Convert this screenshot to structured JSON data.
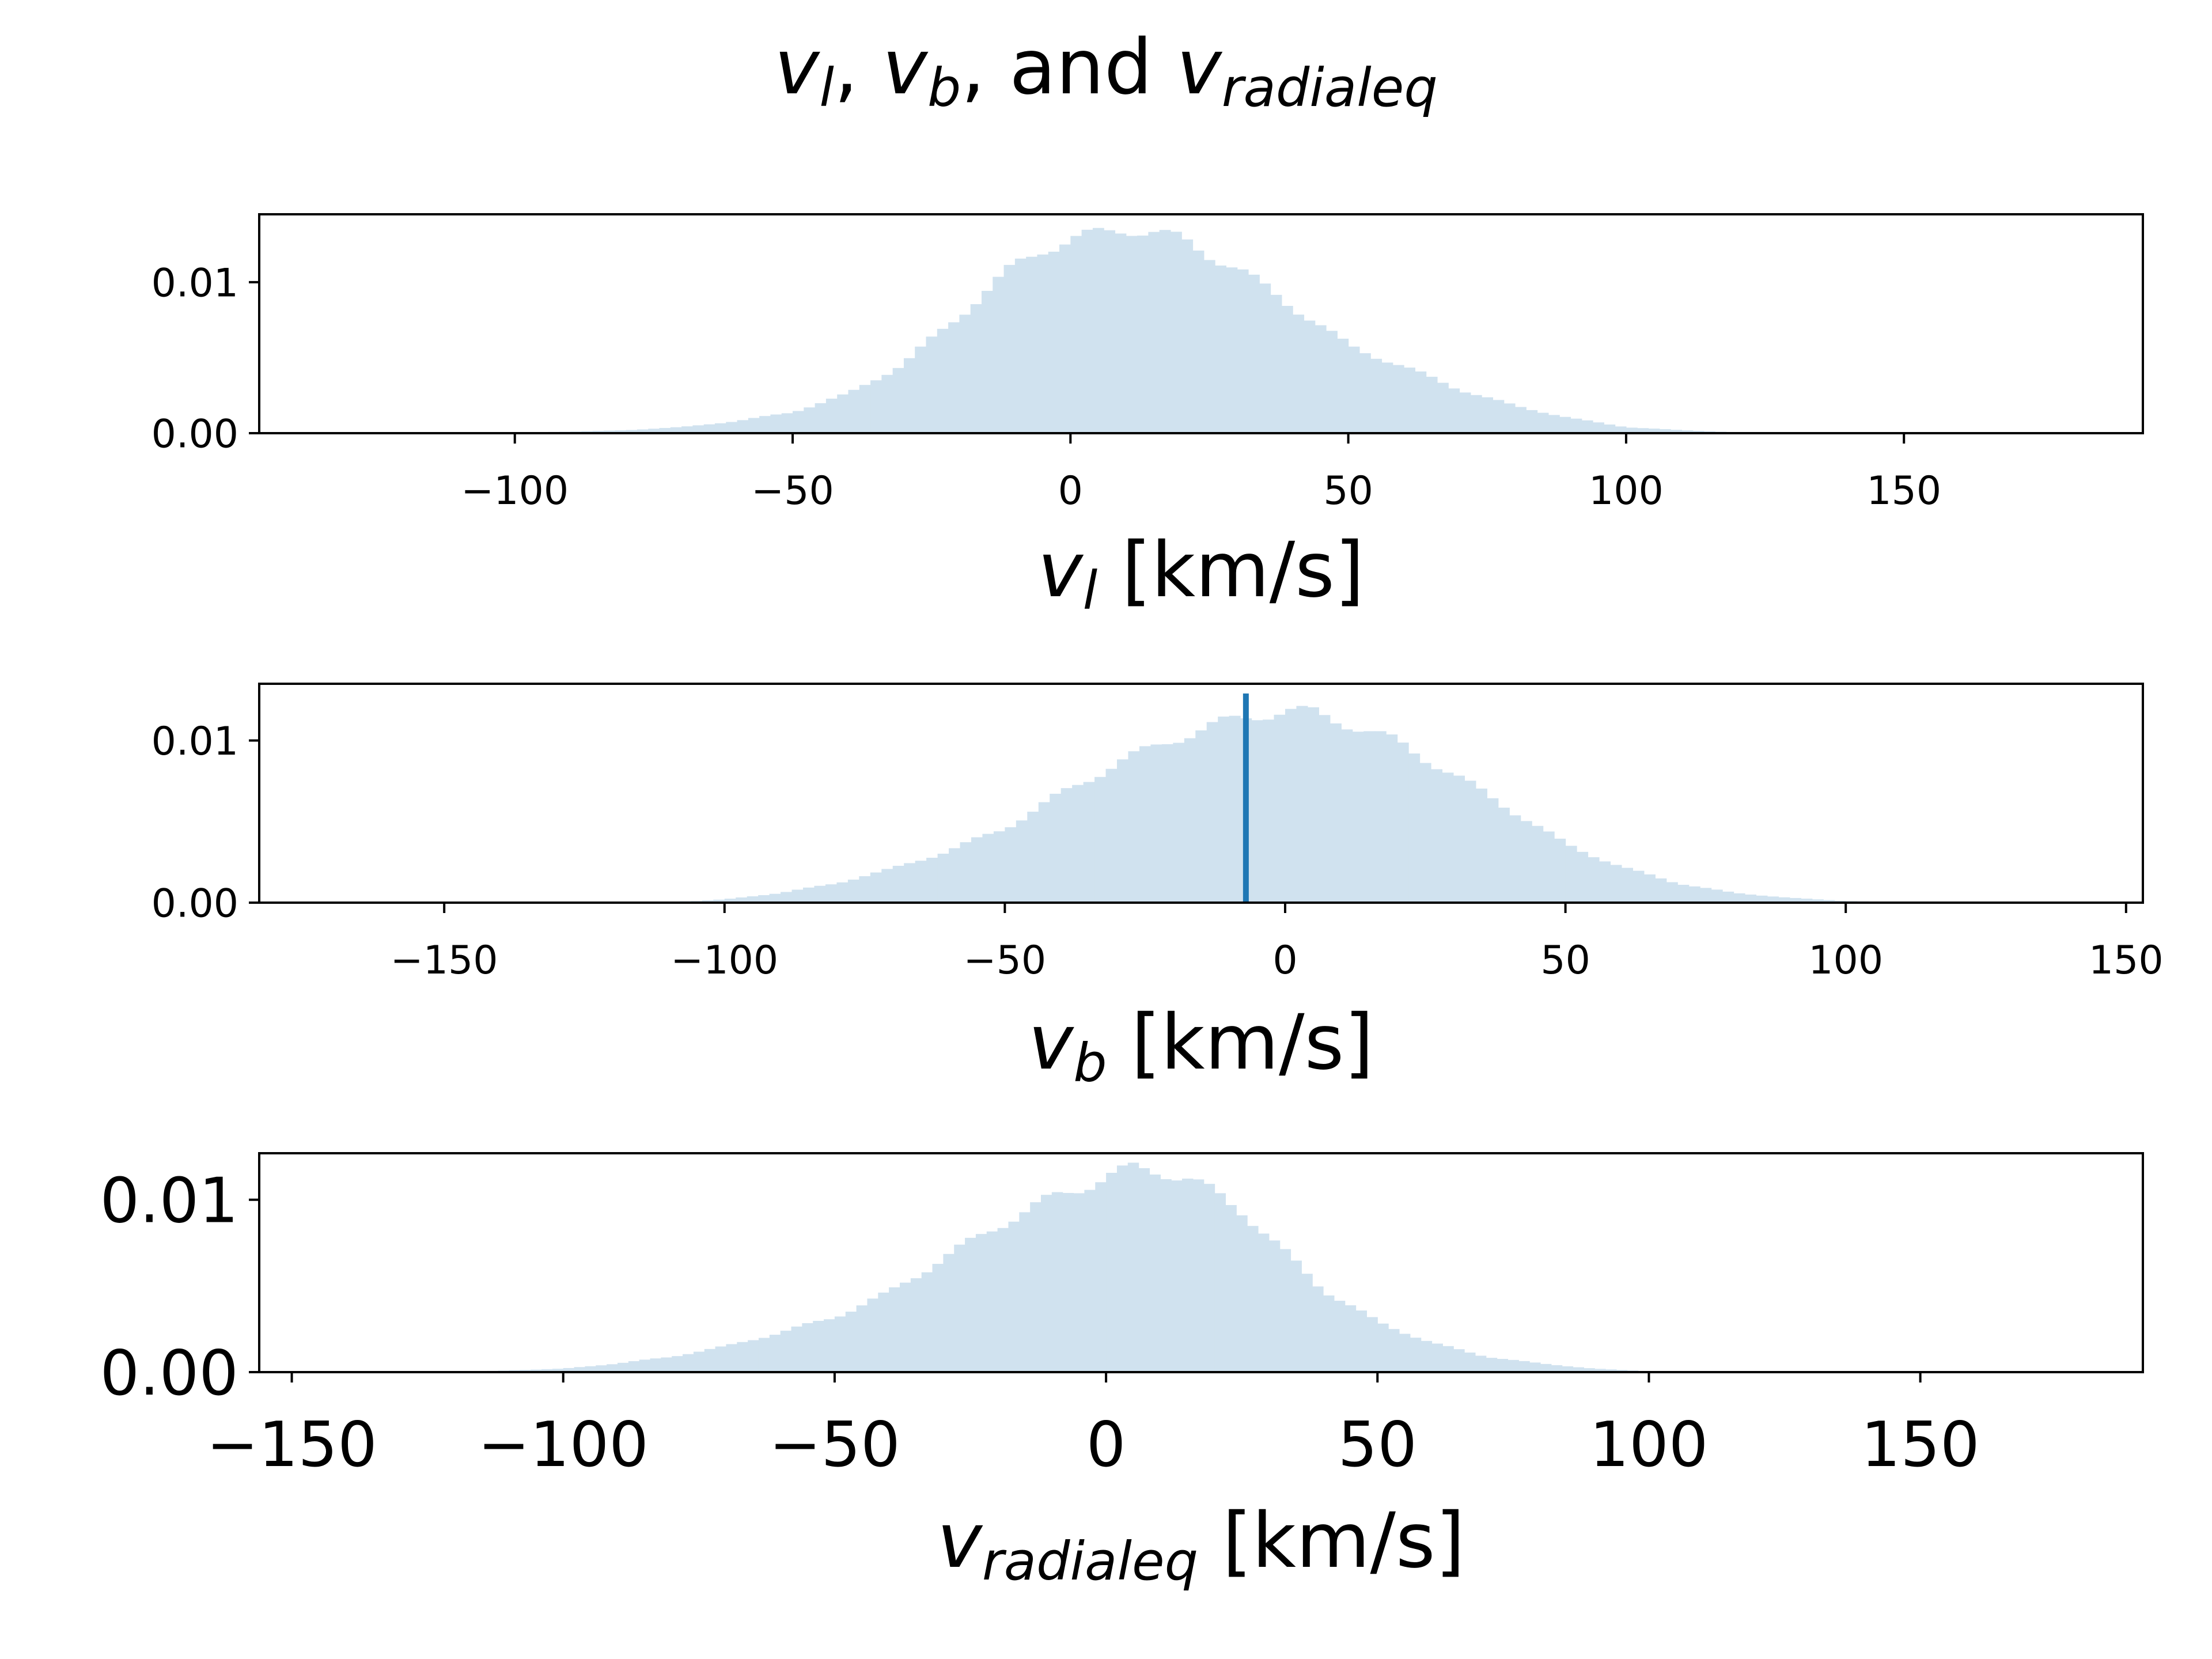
{
  "figure": {
    "title": {
      "main": "v",
      "sub_1": "l",
      "sep_1": ", ",
      "main_2": "v",
      "sub_2": "b",
      "sep_2": ", and ",
      "main_3": "v",
      "sub_3": "radialeq"
    }
  },
  "colors": {
    "bar_fill": "#d0e2ef",
    "marker_line": "#1f77b4",
    "axes": "#000000"
  },
  "chart_data": [
    {
      "type": "bar",
      "xlabel": {
        "var": "v",
        "sub": "l",
        "unit": " [km/s]"
      },
      "ylabel": "",
      "xlim": [
        -146,
        193
      ],
      "ylim": [
        0,
        0.0145
      ],
      "xticks": [
        -100,
        -50,
        0,
        50,
        100,
        150
      ],
      "xtick_labels": [
        "−100",
        "−50",
        "0",
        "50",
        "100",
        "150"
      ],
      "yticks": [
        0,
        0.01
      ],
      "ytick_labels": [
        "0.00",
        "0.01"
      ],
      "bin_width": 2,
      "bins_x": [
        -120,
        -110,
        -100,
        -90,
        -80,
        -70,
        -60,
        -50,
        -40,
        -30,
        -20,
        -10,
        -5,
        0,
        5,
        10,
        15,
        20,
        30,
        40,
        50,
        60,
        70,
        80,
        90,
        100,
        110,
        120,
        130
      ],
      "bins_y": [
        0,
        2e-05,
        5e-05,
        0.0001,
        0.0002,
        0.0004,
        0.0008,
        0.0014,
        0.0026,
        0.0046,
        0.0078,
        0.0111,
        0.0122,
        0.0128,
        0.0132,
        0.0136,
        0.0133,
        0.0128,
        0.0109,
        0.0084,
        0.0058,
        0.0044,
        0.0029,
        0.0018,
        0.001,
        0.0004,
        0.0002,
        5e-05,
        0
      ]
    },
    {
      "type": "bar",
      "xlabel": {
        "var": "v",
        "sub": "b",
        "unit": " [km/s]"
      },
      "ylabel": "",
      "xlim": [
        -183,
        153
      ],
      "ylim": [
        0,
        0.0135
      ],
      "xticks": [
        -150,
        -100,
        -50,
        0,
        50,
        100,
        150
      ],
      "xtick_labels": [
        "−150",
        "−100",
        "−50",
        "0",
        "50",
        "100",
        "150"
      ],
      "yticks": [
        0,
        0.01
      ],
      "ytick_labels": [
        "0.00",
        "0.01"
      ],
      "bin_width": 2,
      "bins_x": [
        -130,
        -115,
        -105,
        -100,
        -90,
        -80,
        -70,
        -60,
        -50,
        -40,
        -30,
        -20,
        -10,
        -5,
        0,
        5,
        10,
        20,
        30,
        40,
        50,
        60,
        70,
        80,
        90,
        100,
        110,
        120
      ],
      "bins_y": [
        0,
        3e-05,
        0.0001,
        0.0002,
        0.0006,
        0.0012,
        0.0021,
        0.0032,
        0.0046,
        0.0067,
        0.0086,
        0.0101,
        0.0112,
        0.0116,
        0.0118,
        0.0117,
        0.0112,
        0.0099,
        0.0079,
        0.0058,
        0.0036,
        0.0022,
        0.0012,
        0.0006,
        0.0003,
        0.0001,
        3e-05,
        0
      ],
      "vline": {
        "x": -7,
        "y_top": 0.0129
      }
    },
    {
      "type": "bar",
      "xlabel": {
        "var": "v",
        "sub": "radialeq",
        "unit": " [km/s]"
      },
      "ylabel": "",
      "xlim": [
        -156,
        191
      ],
      "ylim": [
        0,
        0.0127
      ],
      "xticks": [
        -150,
        -100,
        -50,
        0,
        50,
        100,
        150
      ],
      "xtick_labels": [
        "−150",
        "−100",
        "−50",
        "0",
        "50",
        "100",
        "150"
      ],
      "yticks": [
        0,
        0.01
      ],
      "ytick_labels": [
        "0.00",
        "0.01"
      ],
      "bin_width": 2,
      "bins_x": [
        -130,
        -115,
        -100,
        -90,
        -80,
        -70,
        -60,
        -50,
        -40,
        -30,
        -20,
        -10,
        0,
        5,
        10,
        15,
        20,
        25,
        30,
        40,
        50,
        60,
        70,
        80,
        90,
        100,
        110
      ],
      "bins_y": [
        0,
        5e-05,
        0.0002,
        0.0005,
        0.0009,
        0.0015,
        0.0023,
        0.0032,
        0.0046,
        0.0066,
        0.0085,
        0.0101,
        0.0113,
        0.0118,
        0.0117,
        0.0112,
        0.0104,
        0.0094,
        0.0078,
        0.0048,
        0.0029,
        0.0017,
        0.0009,
        0.0005,
        0.0002,
        5e-05,
        0
      ]
    }
  ]
}
